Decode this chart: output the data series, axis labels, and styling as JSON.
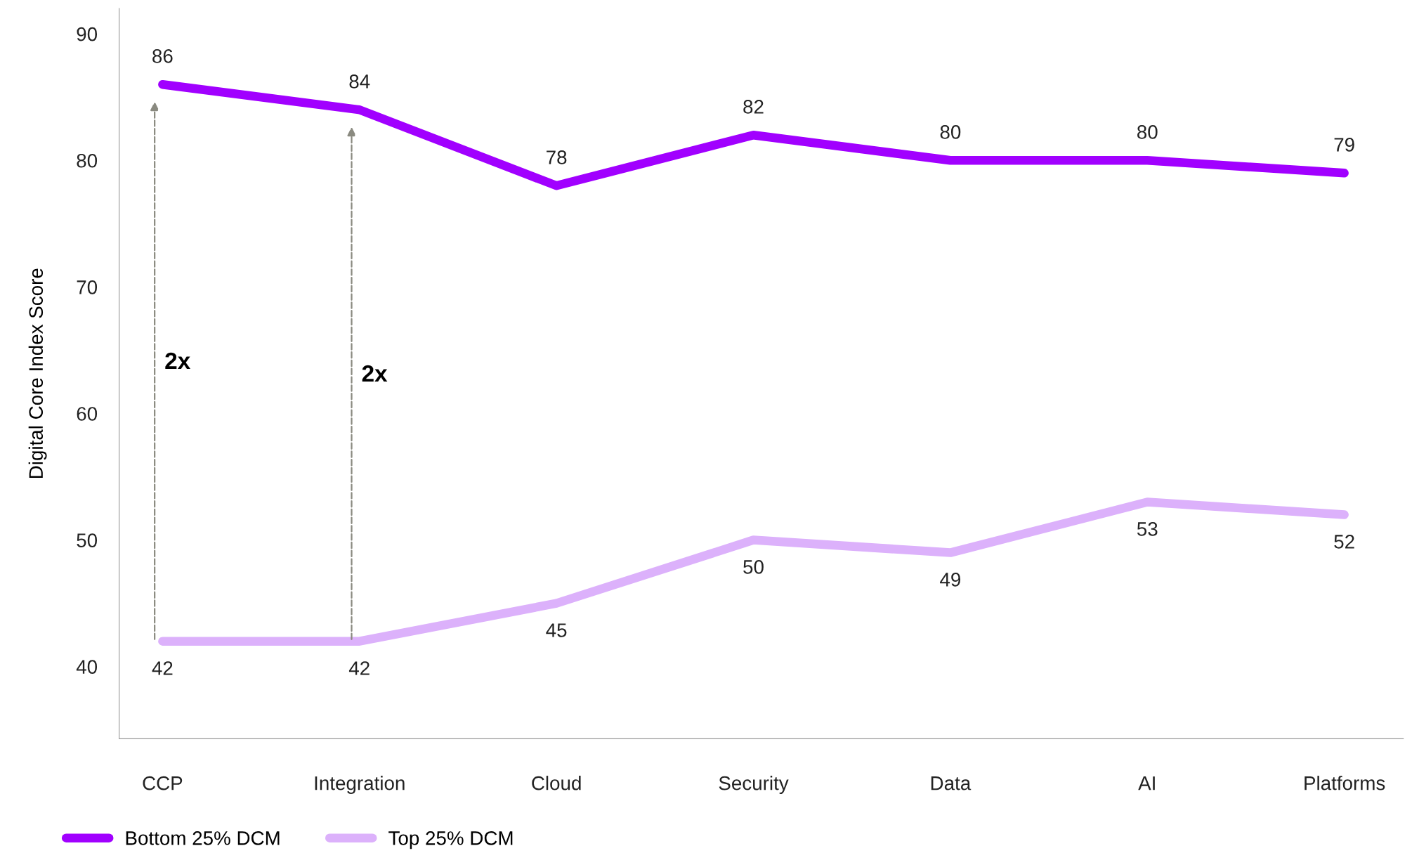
{
  "chart_data": {
    "type": "line",
    "ylabel": "Digital Core Index Score",
    "categories": [
      "CCP",
      "Integration",
      "Cloud",
      "Security",
      "Data",
      "AI",
      "Platforms"
    ],
    "series": [
      {
        "name": "Bottom 25% DCM",
        "color": "#a100ff",
        "values": [
          86,
          84,
          78,
          82,
          80,
          80,
          79
        ]
      },
      {
        "name": "Top 25% DCM",
        "color": "#dcb1fb",
        "values": [
          42,
          42,
          45,
          50,
          49,
          53,
          52
        ]
      }
    ],
    "ylim": [
      34.3,
      92
    ],
    "yticks": [
      40,
      50,
      60,
      70,
      80,
      90
    ],
    "data_labels": true,
    "grid": false,
    "legend": "bottom left",
    "line_style": "solid",
    "annotations": [
      "2x",
      "2x"
    ]
  }
}
